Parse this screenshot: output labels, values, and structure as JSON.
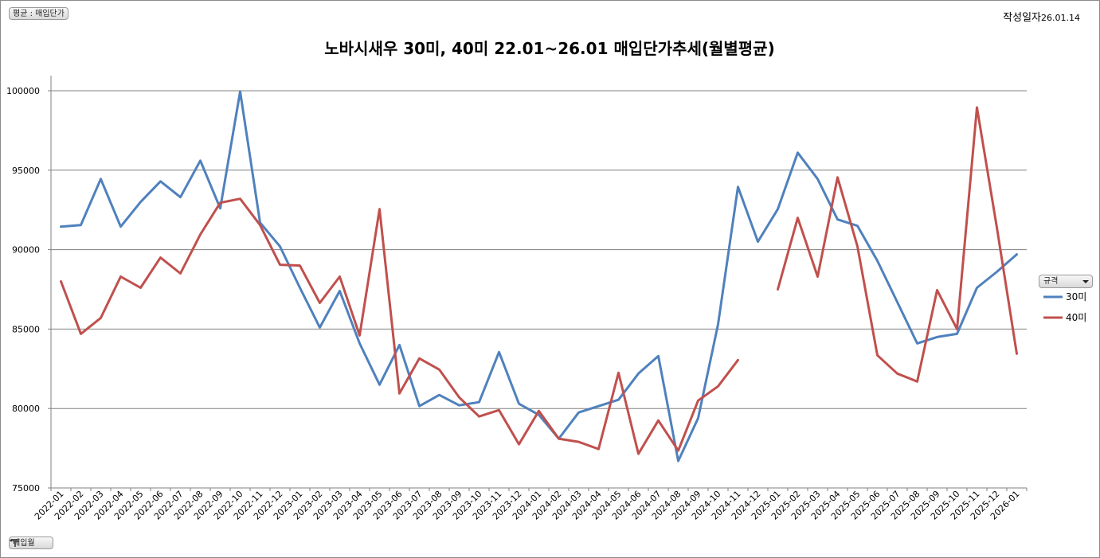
{
  "header": {
    "avg_label": "평균 : 매입단가",
    "date_prefix": "작성일자",
    "date_value": "26.01.14"
  },
  "footer": {
    "filter_label": "매입월"
  },
  "legend": {
    "title": "규격"
  },
  "colors": {
    "series_30": "#4f81bd",
    "series_40": "#c0504d",
    "grid": "#808080"
  },
  "chart_data": {
    "type": "line",
    "title": "노바시새우 30미, 40미 22.01~26.01 매입단가추세(월별평균)",
    "xlabel": "",
    "ylabel": "",
    "ylim": [
      75000,
      100000
    ],
    "y_ticks": [
      75000,
      80000,
      85000,
      90000,
      95000,
      100000
    ],
    "grid": true,
    "legend_position": "right",
    "categories": [
      "2022-01",
      "2022-02",
      "2022-03",
      "2022-04",
      "2022-05",
      "2022-06",
      "2022-07",
      "2022-08",
      "2022-09",
      "2022-10",
      "2022-11",
      "2022-12",
      "2023-01",
      "2023-02",
      "2023-03",
      "2023-04",
      "2023-05",
      "2023-06",
      "2023-07",
      "2023-08",
      "2023-09",
      "2023-10",
      "2023-11",
      "2023-12",
      "2024-01",
      "2024-02",
      "2024-03",
      "2024-04",
      "2024-05",
      "2024-06",
      "2024-07",
      "2024-08",
      "2024-09",
      "2024-10",
      "2024-11",
      "2024-12",
      "2025-01",
      "2025-02",
      "2025-03",
      "2025-04",
      "2025-05",
      "2025-06",
      "2025-07",
      "2025-08",
      "2025-09",
      "2025-10",
      "2025-11",
      "2025-12",
      "2026-01"
    ],
    "series": [
      {
        "name": "30미",
        "color": "#4f81bd",
        "values": [
          91450,
          91550,
          94450,
          91450,
          93000,
          94300,
          93300,
          95600,
          92600,
          99950,
          91700,
          90200,
          87600,
          85100,
          87400,
          84100,
          81500,
          84000,
          80150,
          80850,
          80200,
          80400,
          83550,
          80300,
          79600,
          78100,
          79750,
          80150,
          80550,
          82200,
          83300,
          76700,
          79400,
          85300,
          93950,
          90500,
          92550,
          96100,
          94450,
          91900,
          91500,
          89300,
          86700,
          84100,
          84500,
          84700,
          87600,
          88600,
          89700
        ]
      },
      {
        "name": "40미",
        "color": "#c0504d",
        "values": [
          88000,
          84700,
          85700,
          88300,
          87600,
          89500,
          88500,
          90950,
          92950,
          93200,
          91550,
          89050,
          89000,
          86650,
          88300,
          84600,
          92550,
          80950,
          83150,
          82450,
          80700,
          79500,
          79900,
          77750,
          79850,
          78100,
          77900,
          77450,
          82250,
          77150,
          79250,
          77350,
          80500,
          81400,
          83050,
          null,
          87500,
          92000,
          88300,
          94550,
          90200,
          83350,
          82200,
          81700,
          87450,
          85000,
          98950,
          91400,
          83450
        ]
      }
    ]
  }
}
